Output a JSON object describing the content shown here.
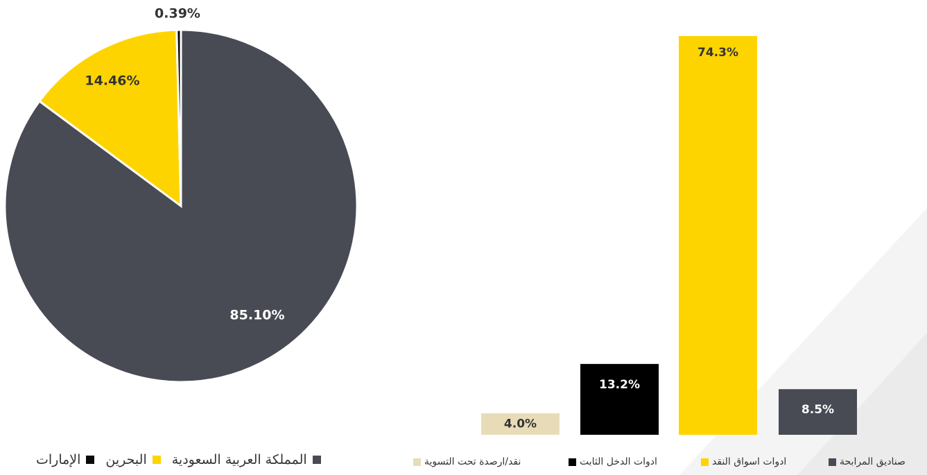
{
  "chart_data": [
    {
      "type": "pie",
      "slices": [
        {
          "label": "المملكة العربية السعودية",
          "value": 85.1,
          "display": "85.10%",
          "color": "#484b54"
        },
        {
          "label": "البحرين",
          "value": 14.46,
          "display": "14.46%",
          "color": "#fdd400"
        },
        {
          "label": "الإمارات",
          "value": 0.39,
          "display": "0.39%",
          "color": "#0a0a0a"
        }
      ],
      "legend": {
        "placement": "bottom"
      }
    },
    {
      "type": "bar",
      "categories": [
        "نقد/ارصدة تحت التسوية",
        "ادوات الدخل الثابت",
        "ادوات اسواق النقد",
        "صناديق المرابحة"
      ],
      "values": [
        4.0,
        13.2,
        74.3,
        8.5
      ],
      "labels": [
        "4.0%",
        "13.2%",
        "74.3%",
        "8.5%"
      ],
      "colors": [
        "#e8dcb8",
        "#000000",
        "#fdd400",
        "#484b54"
      ],
      "label_colors": [
        "#333333",
        "#ffffff",
        "#333333",
        "#ffffff"
      ],
      "ylim": [
        0,
        74.3
      ],
      "legend": {
        "placement": "bottom"
      }
    }
  ]
}
